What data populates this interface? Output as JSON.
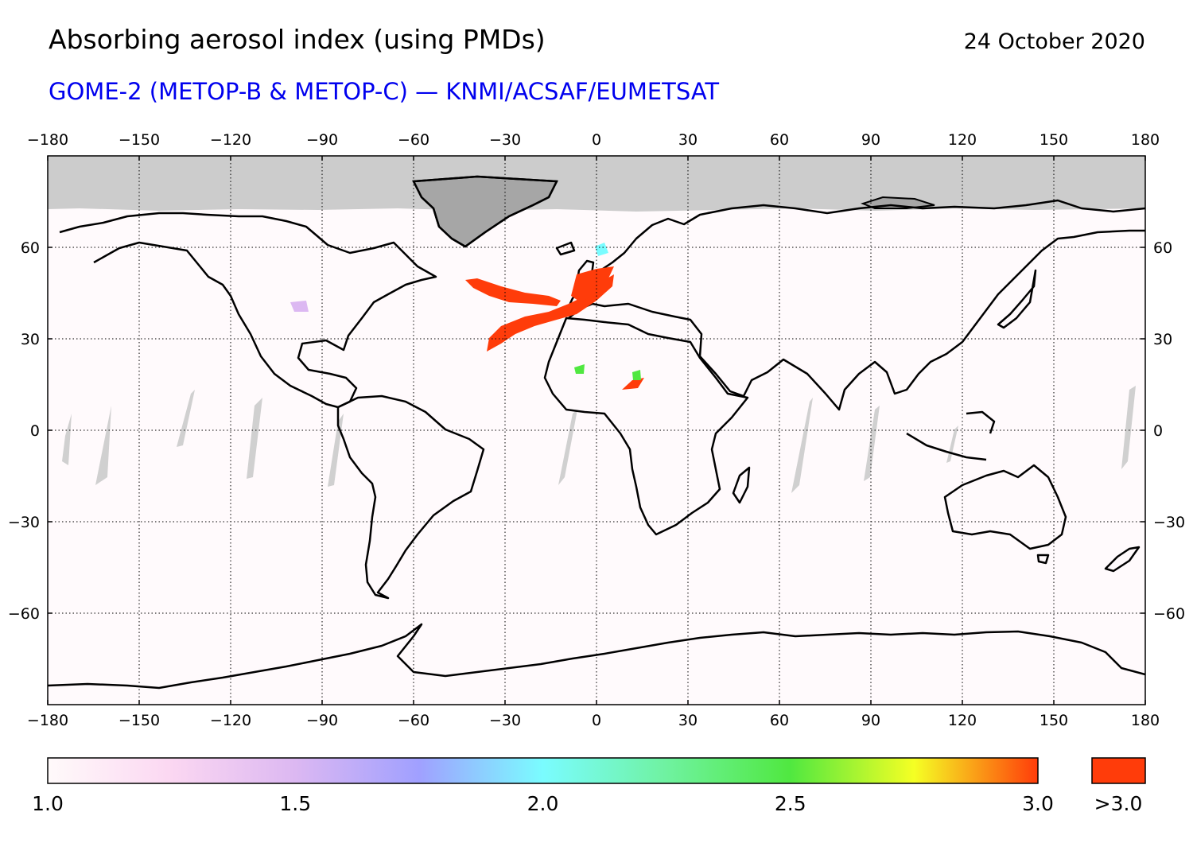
{
  "title": "Absorbing aerosol index (using PMDs)",
  "date": "24 October 2020",
  "subtitle": "GOME-2 (METOP-B & METOP-C) — KNMI/ACSAF/EUMETSAT",
  "colors": {
    "subtitle": "#0000ee",
    "no_data": "#cccccc",
    "ice_land": "#a6a6a6",
    "background": "#fffafc",
    "plume": "#ff3c0a",
    "over_range": "#ff3c0a"
  },
  "map": {
    "projection": "equirectangular",
    "lon_range": [
      -180,
      180
    ],
    "lat_range": [
      -90,
      90
    ],
    "lon_ticks": [
      -180,
      -150,
      -120,
      -90,
      -60,
      -30,
      0,
      30,
      60,
      90,
      120,
      150,
      180
    ],
    "lon_tick_labels": [
      "−180",
      "−150",
      "−120",
      "−90",
      "−60",
      "−30",
      "0",
      "30",
      "60",
      "90",
      "120",
      "150",
      "180"
    ],
    "lat_ticks": [
      60,
      30,
      0,
      -30,
      -60
    ],
    "lat_tick_labels": [
      "60",
      "30",
      "0",
      "−30",
      "−60"
    ],
    "grid": "dotted",
    "north_no_data_above_lat": 73
  },
  "colorbar": {
    "range": [
      1.0,
      3.0
    ],
    "labels": [
      "1.0",
      "1.5",
      "2.0",
      "2.5",
      "3.0"
    ],
    "over_label": ">3.0",
    "stops": [
      {
        "value": 1.0,
        "color": "#fffafa"
      },
      {
        "value": 1.25,
        "color": "#fbd7f2"
      },
      {
        "value": 1.5,
        "color": "#dcb8f2"
      },
      {
        "value": 1.75,
        "color": "#a0a0ff"
      },
      {
        "value": 2.0,
        "color": "#7afcff"
      },
      {
        "value": 2.25,
        "color": "#6ff2a0"
      },
      {
        "value": 2.5,
        "color": "#50e840"
      },
      {
        "value": 2.75,
        "color": "#f5ff24"
      },
      {
        "value": 3.0,
        "color": "#ff3c0a"
      }
    ]
  }
}
